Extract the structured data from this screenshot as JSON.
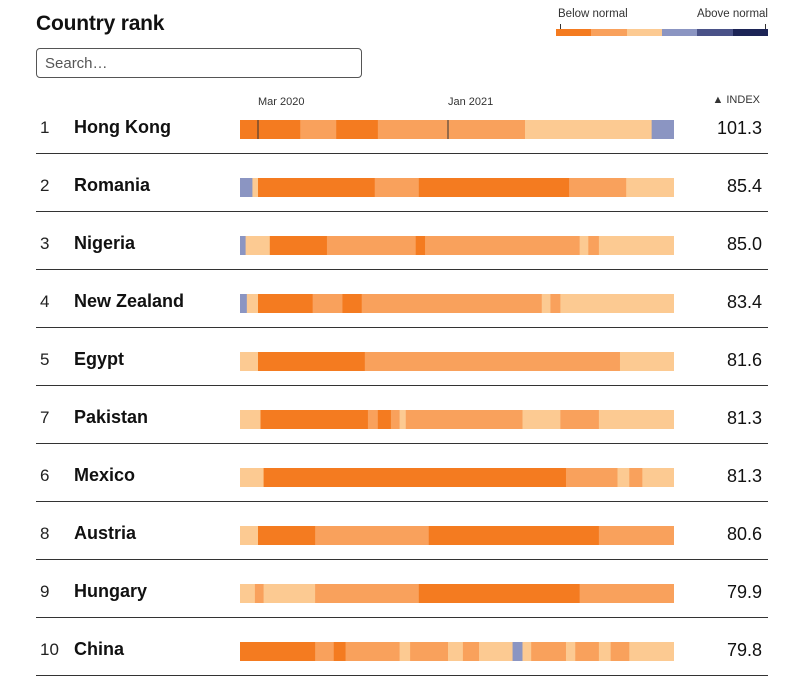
{
  "page": {
    "title": "Country rank",
    "search_placeholder": "Search…",
    "index_header": "▲ INDEX"
  },
  "legend": {
    "below_label": "Below normal",
    "above_label": "Above normal",
    "colors": [
      "#f47b20",
      "#f9a15c",
      "#fcca92",
      "#8b95c2",
      "#4a5288",
      "#1c2456"
    ]
  },
  "chart_data": {
    "type": "table",
    "title": "Country rank",
    "time_axis": {
      "start": "2020-02-01",
      "end": "2021-12-31",
      "ticks": [
        {
          "label": "Mar 2020",
          "date": "2020-03-01"
        },
        {
          "label": "Jan 2021",
          "date": "2021-01-01"
        }
      ]
    },
    "levels": {
      "0": "#f47b20",
      "1": "#f9a15c",
      "2": "#fcca92",
      "3": "#8b95c2"
    },
    "rows": [
      {
        "rank": "1",
        "country": "Hong Kong",
        "index": "101.3",
        "segments": [
          {
            "start": "2020-02-01",
            "level": 0
          },
          {
            "start": "2020-05-08",
            "level": 1
          },
          {
            "start": "2020-07-05",
            "level": 0
          },
          {
            "start": "2020-09-10",
            "level": 1
          },
          {
            "start": "2021-05-05",
            "level": 2
          },
          {
            "start": "2021-11-25",
            "level": 3
          }
        ]
      },
      {
        "rank": "2",
        "country": "Romania",
        "index": "85.4",
        "segments": [
          {
            "start": "2020-02-01",
            "level": 3
          },
          {
            "start": "2020-02-21",
            "level": 2
          },
          {
            "start": "2020-03-01",
            "level": 0
          },
          {
            "start": "2020-09-05",
            "level": 1
          },
          {
            "start": "2020-11-15",
            "level": 0
          },
          {
            "start": "2021-07-15",
            "level": 1
          },
          {
            "start": "2021-10-15",
            "level": 2
          }
        ]
      },
      {
        "rank": "3",
        "country": "Nigeria",
        "index": "85.0",
        "segments": [
          {
            "start": "2020-02-01",
            "level": 3
          },
          {
            "start": "2020-02-10",
            "level": 2
          },
          {
            "start": "2020-03-20",
            "level": 0
          },
          {
            "start": "2020-06-20",
            "level": 1
          },
          {
            "start": "2020-11-10",
            "level": 0
          },
          {
            "start": "2020-11-25",
            "level": 1
          },
          {
            "start": "2021-08-01",
            "level": 2
          },
          {
            "start": "2021-08-15",
            "level": 1
          },
          {
            "start": "2021-09-01",
            "level": 2
          }
        ]
      },
      {
        "rank": "4",
        "country": "New Zealand",
        "index": "83.4",
        "segments": [
          {
            "start": "2020-02-01",
            "level": 3
          },
          {
            "start": "2020-02-12",
            "level": 2
          },
          {
            "start": "2020-03-01",
            "level": 0
          },
          {
            "start": "2020-05-28",
            "level": 1
          },
          {
            "start": "2020-07-15",
            "level": 0
          },
          {
            "start": "2020-08-15",
            "level": 1
          },
          {
            "start": "2021-06-01",
            "level": 2
          },
          {
            "start": "2021-06-15",
            "level": 1
          },
          {
            "start": "2021-07-01",
            "level": 2
          }
        ]
      },
      {
        "rank": "5",
        "country": "Egypt",
        "index": "81.6",
        "segments": [
          {
            "start": "2020-02-01",
            "level": 2
          },
          {
            "start": "2020-03-01",
            "level": 0
          },
          {
            "start": "2020-08-20",
            "level": 1
          },
          {
            "start": "2021-10-05",
            "level": 2
          }
        ]
      },
      {
        "rank": "7",
        "country": "Pakistan",
        "index": "81.3",
        "segments": [
          {
            "start": "2020-02-01",
            "level": 2
          },
          {
            "start": "2020-03-05",
            "level": 0
          },
          {
            "start": "2020-08-25",
            "level": 1
          },
          {
            "start": "2020-09-10",
            "level": 0
          },
          {
            "start": "2020-10-01",
            "level": 1
          },
          {
            "start": "2020-10-15",
            "level": 2
          },
          {
            "start": "2020-10-25",
            "level": 1
          },
          {
            "start": "2021-05-01",
            "level": 2
          },
          {
            "start": "2021-07-01",
            "level": 1
          },
          {
            "start": "2021-09-01",
            "level": 2
          }
        ]
      },
      {
        "rank": "6",
        "country": "Mexico",
        "index": "81.3",
        "segments": [
          {
            "start": "2020-02-01",
            "level": 2
          },
          {
            "start": "2020-03-10",
            "level": 0
          },
          {
            "start": "2021-07-10",
            "level": 1
          },
          {
            "start": "2021-10-01",
            "level": 2
          },
          {
            "start": "2021-10-20",
            "level": 1
          },
          {
            "start": "2021-11-10",
            "level": 2
          }
        ]
      },
      {
        "rank": "8",
        "country": "Austria",
        "index": "80.6",
        "segments": [
          {
            "start": "2020-02-01",
            "level": 2
          },
          {
            "start": "2020-03-01",
            "level": 0
          },
          {
            "start": "2020-06-01",
            "level": 1
          },
          {
            "start": "2020-12-01",
            "level": 0
          },
          {
            "start": "2021-09-01",
            "level": 1
          }
        ]
      },
      {
        "rank": "9",
        "country": "Hungary",
        "index": "79.9",
        "segments": [
          {
            "start": "2020-02-01",
            "level": 2
          },
          {
            "start": "2020-02-25",
            "level": 1
          },
          {
            "start": "2020-03-10",
            "level": 2
          },
          {
            "start": "2020-06-01",
            "level": 1
          },
          {
            "start": "2020-11-15",
            "level": 0
          },
          {
            "start": "2021-08-01",
            "level": 1
          }
        ]
      },
      {
        "rank": "10",
        "country": "China",
        "index": "79.8",
        "segments": [
          {
            "start": "2020-02-01",
            "level": 0
          },
          {
            "start": "2020-06-01",
            "level": 1
          },
          {
            "start": "2020-07-01",
            "level": 0
          },
          {
            "start": "2020-07-20",
            "level": 1
          },
          {
            "start": "2020-10-15",
            "level": 2
          },
          {
            "start": "2020-11-01",
            "level": 1
          },
          {
            "start": "2021-01-01",
            "level": 2
          },
          {
            "start": "2021-01-25",
            "level": 1
          },
          {
            "start": "2021-02-20",
            "level": 2
          },
          {
            "start": "2021-04-15",
            "level": 3
          },
          {
            "start": "2021-05-01",
            "level": 2
          },
          {
            "start": "2021-05-15",
            "level": 1
          },
          {
            "start": "2021-07-10",
            "level": 2
          },
          {
            "start": "2021-07-25",
            "level": 1
          },
          {
            "start": "2021-09-01",
            "level": 2
          },
          {
            "start": "2021-09-20",
            "level": 1
          },
          {
            "start": "2021-10-20",
            "level": 2
          }
        ]
      }
    ]
  }
}
